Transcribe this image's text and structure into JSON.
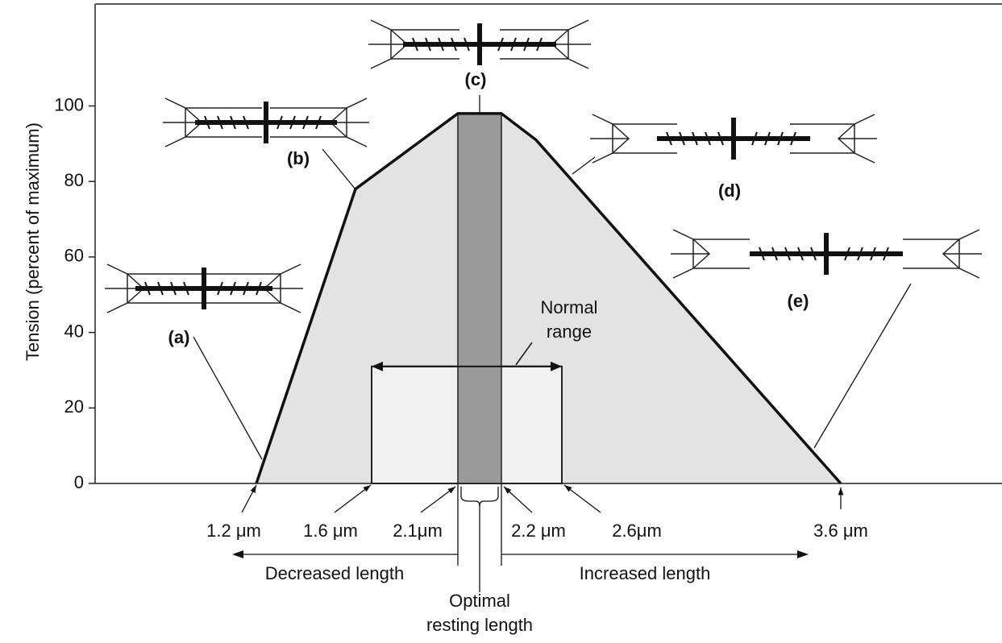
{
  "chart_data": {
    "type": "line",
    "y_label": "Tension (percent of maximum)",
    "ylim": [
      0,
      127
    ],
    "yticks": [
      0,
      20,
      40,
      60,
      80,
      100
    ],
    "categories": [
      "1.2 μm",
      null,
      "2.1μm",
      "2.2 μm",
      null,
      "3.6 μm"
    ],
    "values": [
      0,
      78,
      98,
      98,
      91,
      0
    ],
    "fill_color": "#e3e3e3",
    "optimal_color": "#9a9a9a",
    "normal_range": {
      "label_lines": [
        "Normal",
        "range"
      ],
      "value": 31,
      "edges": [
        "1.6 μm",
        "2.6μm"
      ]
    },
    "sarcomere_labels": [
      "(a)",
      "(b)",
      "(c)",
      "(d)",
      "(e)"
    ],
    "decreased_label": "Decreased length",
    "increased_label": "Increased length",
    "optimal_label_lines": [
      "Optimal",
      "resting length"
    ]
  }
}
